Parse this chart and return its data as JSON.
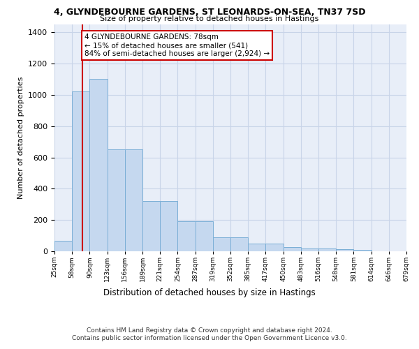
{
  "title1": "4, GLYNDEBOURNE GARDENS, ST LEONARDS-ON-SEA, TN37 7SD",
  "title2": "Size of property relative to detached houses in Hastings",
  "xlabel": "Distribution of detached houses by size in Hastings",
  "ylabel": "Number of detached properties",
  "bin_edges": [
    25,
    58,
    91,
    124,
    157,
    190,
    223,
    256,
    289,
    322,
    355,
    388,
    421,
    454,
    487,
    520,
    553,
    586,
    619,
    652,
    685
  ],
  "bar_heights": [
    65,
    1020,
    1100,
    650,
    650,
    320,
    320,
    190,
    190,
    90,
    90,
    50,
    50,
    25,
    20,
    20,
    15,
    10,
    0,
    0
  ],
  "bar_color": "#c5d8ef",
  "bar_edge_color": "#7aaed6",
  "grid_color": "#c8d4e8",
  "background_color": "#e8eef8",
  "property_size": 78,
  "red_line_color": "#cc0000",
  "annotation_text": "4 GLYNDEBOURNE GARDENS: 78sqm\n← 15% of detached houses are smaller (541)\n84% of semi-detached houses are larger (2,924) →",
  "annotation_box_color": "white",
  "annotation_border_color": "#cc0000",
  "ylim": [
    0,
    1450
  ],
  "yticks": [
    0,
    200,
    400,
    600,
    800,
    1000,
    1200,
    1400
  ],
  "footer1": "Contains HM Land Registry data © Crown copyright and database right 2024.",
  "footer2": "Contains public sector information licensed under the Open Government Licence v3.0.",
  "tick_labels": [
    "25sqm",
    "58sqm",
    "90sqm",
    "123sqm",
    "156sqm",
    "189sqm",
    "221sqm",
    "254sqm",
    "287sqm",
    "319sqm",
    "352sqm",
    "385sqm",
    "417sqm",
    "450sqm",
    "483sqm",
    "516sqm",
    "548sqm",
    "581sqm",
    "614sqm",
    "646sqm",
    "679sqm"
  ]
}
